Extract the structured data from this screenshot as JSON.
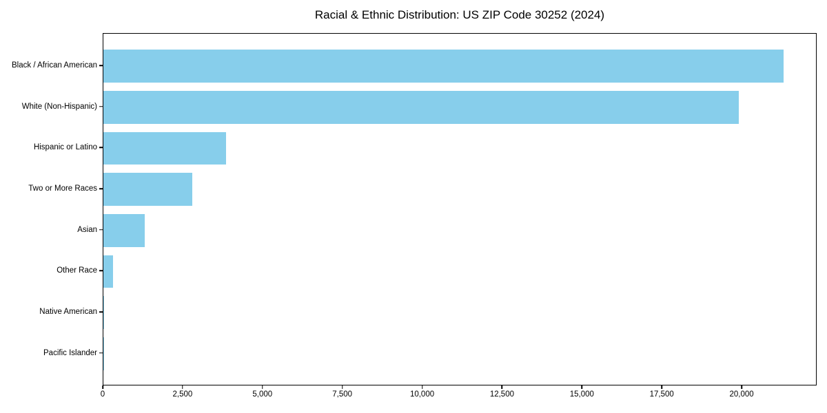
{
  "chart_data": {
    "type": "bar",
    "orientation": "horizontal",
    "title": "Racial & Ethnic Distribution: US ZIP Code 30252 (2024)",
    "categories": [
      "Black / African American",
      "White (Non-Hispanic)",
      "Hispanic or Latino",
      "Two or More Races",
      "Asian",
      "Other Race",
      "Native American",
      "Pacific Islander"
    ],
    "values": [
      21300,
      19900,
      3850,
      2780,
      1300,
      310,
      25,
      10
    ],
    "xlabel": "",
    "ylabel": "",
    "xlim": [
      0,
      22350
    ],
    "x_ticks": [
      0,
      2500,
      5000,
      7500,
      10000,
      12500,
      15000,
      17500,
      20000
    ],
    "x_tick_labels": [
      "0",
      "2,500",
      "5,000",
      "7,500",
      "10,000",
      "12,500",
      "15,000",
      "17,500",
      "20,000"
    ],
    "bar_color": "#87CEEB",
    "axis_color": "#000000",
    "background_color": "#ffffff",
    "grid": false,
    "legend": false
  }
}
